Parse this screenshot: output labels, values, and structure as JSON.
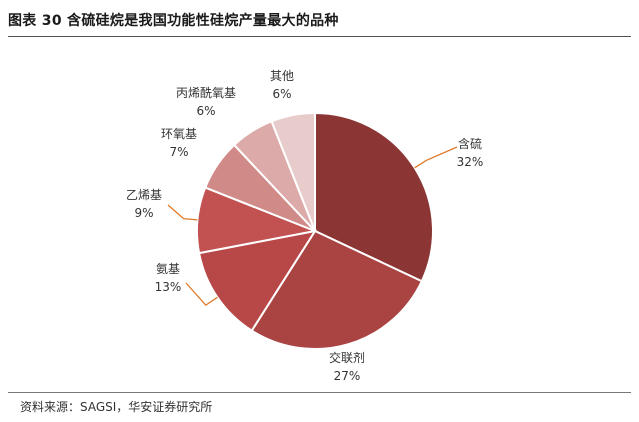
{
  "header": {
    "title": "图表 30 含硫硅烷是我国功能性硅烷产量最大的品种"
  },
  "footer": {
    "source": "资料来源：SAGSI，华安证券研究所"
  },
  "chart_data": {
    "type": "pie",
    "title": "",
    "start": "12 o'clock",
    "direction": "clockwise",
    "slices": [
      {
        "label": "含硫",
        "value": 32,
        "display": "32%",
        "color": "#8b3634"
      },
      {
        "label": "交联剂",
        "value": 27,
        "display": "27%",
        "color": "#a94442"
      },
      {
        "label": "氨基",
        "value": 13,
        "display": "13%",
        "color": "#b84848"
      },
      {
        "label": "乙烯基",
        "value": 9,
        "display": "9%",
        "color": "#c25252"
      },
      {
        "label": "环氧基",
        "value": 7,
        "display": "7%",
        "color": "#d08a88"
      },
      {
        "label": "丙烯酰氧基",
        "value": 6,
        "display": "6%",
        "color": "#dcaaa8"
      },
      {
        "label": "其他",
        "value": 6,
        "display": "6%",
        "color": "#e8cccb"
      }
    ],
    "leader_color": "#e07a2a"
  }
}
